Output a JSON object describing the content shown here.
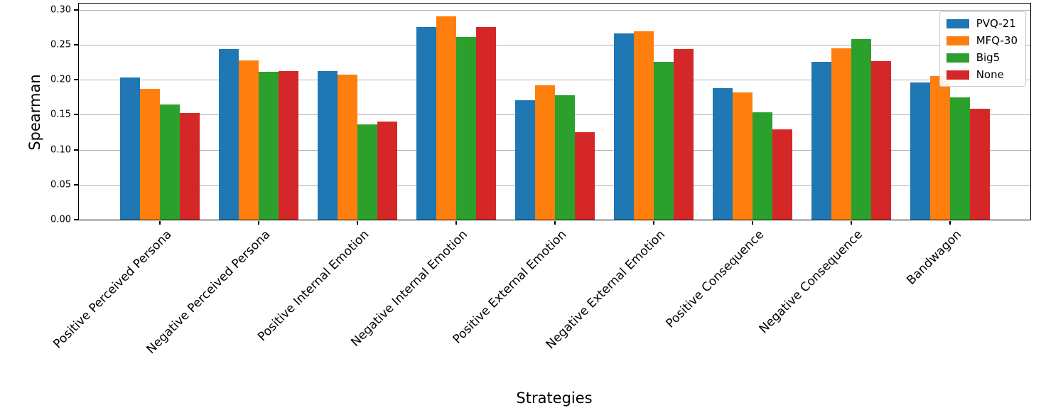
{
  "chart_data": {
    "type": "bar",
    "title": "",
    "xlabel": "Strategies",
    "ylabel": "Spearman",
    "categories": [
      "Positive Perceived Persona",
      "Negative Perceived Persona",
      "Positive Internal Emotion",
      "Negative Internal Emotion",
      "Positive External Emotion",
      "Negative External Emotion",
      "Positive Consequence",
      "Negative Consequence",
      "Bandwagon"
    ],
    "series": [
      {
        "name": "PVQ-21",
        "color": "#1f77b4",
        "values": [
          0.203,
          0.244,
          0.212,
          0.276,
          0.171,
          0.266,
          0.188,
          0.226,
          0.196
        ]
      },
      {
        "name": "MFQ-30",
        "color": "#ff7f0e",
        "values": [
          0.187,
          0.228,
          0.207,
          0.291,
          0.192,
          0.269,
          0.182,
          0.245,
          0.205
        ]
      },
      {
        "name": "Big5",
        "color": "#2ca02c",
        "values": [
          0.165,
          0.211,
          0.136,
          0.261,
          0.178,
          0.226,
          0.154,
          0.258,
          0.175
        ]
      },
      {
        "name": "None",
        "color": "#d62728",
        "values": [
          0.153,
          0.212,
          0.14,
          0.275,
          0.125,
          0.244,
          0.129,
          0.227,
          0.159
        ]
      }
    ],
    "ylim": [
      0.0,
      0.309
    ],
    "yticks": [
      0.0,
      0.05,
      0.1,
      0.15,
      0.2,
      0.25,
      0.3
    ],
    "ytick_labels": [
      "0.00",
      "0.05",
      "0.10",
      "0.15",
      "0.20",
      "0.25",
      "0.30"
    ],
    "grid": true,
    "gridline_color": "#b0b0b0",
    "legend_position": "upper right"
  }
}
